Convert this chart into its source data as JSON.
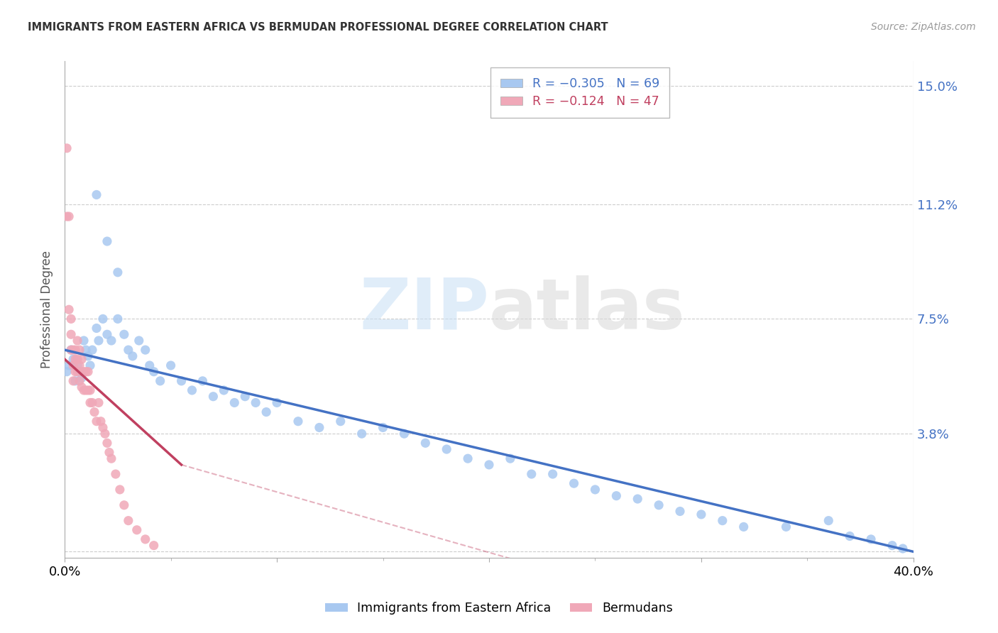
{
  "title": "IMMIGRANTS FROM EASTERN AFRICA VS BERMUDAN PROFESSIONAL DEGREE CORRELATION CHART",
  "source": "Source: ZipAtlas.com",
  "ylabel": "Professional Degree",
  "ytick_labels": [
    "",
    "3.8%",
    "7.5%",
    "11.2%",
    "15.0%"
  ],
  "ytick_values": [
    0.0,
    0.038,
    0.075,
    0.112,
    0.15
  ],
  "xlim": [
    0.0,
    0.4
  ],
  "ylim": [
    -0.002,
    0.158
  ],
  "legend_text": [
    "R = −0.305   N = 69",
    "R = −0.124   N = 47"
  ],
  "watermark_zip": "ZIP",
  "watermark_atlas": "atlas",
  "blue_scatter_x": [
    0.001,
    0.002,
    0.003,
    0.004,
    0.005,
    0.006,
    0.007,
    0.008,
    0.009,
    0.01,
    0.011,
    0.012,
    0.013,
    0.015,
    0.016,
    0.018,
    0.02,
    0.022,
    0.025,
    0.028,
    0.03,
    0.032,
    0.035,
    0.038,
    0.04,
    0.042,
    0.045,
    0.05,
    0.055,
    0.06,
    0.065,
    0.07,
    0.075,
    0.08,
    0.085,
    0.09,
    0.095,
    0.1,
    0.11,
    0.12,
    0.13,
    0.14,
    0.15,
    0.16,
    0.17,
    0.18,
    0.19,
    0.2,
    0.21,
    0.22,
    0.23,
    0.24,
    0.25,
    0.26,
    0.27,
    0.28,
    0.29,
    0.3,
    0.31,
    0.32,
    0.34,
    0.36,
    0.37,
    0.38,
    0.39,
    0.395,
    0.015,
    0.02,
    0.025
  ],
  "blue_scatter_y": [
    0.058,
    0.06,
    0.065,
    0.062,
    0.055,
    0.06,
    0.058,
    0.056,
    0.068,
    0.065,
    0.063,
    0.06,
    0.065,
    0.072,
    0.068,
    0.075,
    0.07,
    0.068,
    0.075,
    0.07,
    0.065,
    0.063,
    0.068,
    0.065,
    0.06,
    0.058,
    0.055,
    0.06,
    0.055,
    0.052,
    0.055,
    0.05,
    0.052,
    0.048,
    0.05,
    0.048,
    0.045,
    0.048,
    0.042,
    0.04,
    0.042,
    0.038,
    0.04,
    0.038,
    0.035,
    0.033,
    0.03,
    0.028,
    0.03,
    0.025,
    0.025,
    0.022,
    0.02,
    0.018,
    0.017,
    0.015,
    0.013,
    0.012,
    0.01,
    0.008,
    0.008,
    0.01,
    0.005,
    0.004,
    0.002,
    0.001,
    0.115,
    0.1,
    0.09
  ],
  "pink_scatter_x": [
    0.001,
    0.001,
    0.002,
    0.002,
    0.003,
    0.003,
    0.003,
    0.004,
    0.004,
    0.004,
    0.005,
    0.005,
    0.005,
    0.006,
    0.006,
    0.006,
    0.007,
    0.007,
    0.007,
    0.008,
    0.008,
    0.008,
    0.009,
    0.009,
    0.01,
    0.01,
    0.011,
    0.011,
    0.012,
    0.012,
    0.013,
    0.014,
    0.015,
    0.016,
    0.017,
    0.018,
    0.019,
    0.02,
    0.021,
    0.022,
    0.024,
    0.026,
    0.028,
    0.03,
    0.034,
    0.038,
    0.042
  ],
  "pink_scatter_y": [
    0.13,
    0.108,
    0.108,
    0.078,
    0.075,
    0.07,
    0.065,
    0.065,
    0.06,
    0.055,
    0.065,
    0.062,
    0.058,
    0.068,
    0.062,
    0.058,
    0.065,
    0.06,
    0.055,
    0.062,
    0.058,
    0.053,
    0.058,
    0.052,
    0.058,
    0.052,
    0.058,
    0.052,
    0.052,
    0.048,
    0.048,
    0.045,
    0.042,
    0.048,
    0.042,
    0.04,
    0.038,
    0.035,
    0.032,
    0.03,
    0.025,
    0.02,
    0.015,
    0.01,
    0.007,
    0.004,
    0.002
  ],
  "blue_line_x": [
    0.0,
    0.4
  ],
  "blue_line_y": [
    0.065,
    0.0
  ],
  "pink_line_x": [
    0.0,
    0.055
  ],
  "pink_line_y": [
    0.062,
    0.028
  ],
  "scatter_color_blue": "#a8c8f0",
  "scatter_color_pink": "#f0a8b8",
  "line_color_blue": "#4472c4",
  "line_color_pink": "#c04060",
  "grid_color": "#cccccc",
  "right_axis_color": "#4472c4",
  "background_color": "#ffffff"
}
